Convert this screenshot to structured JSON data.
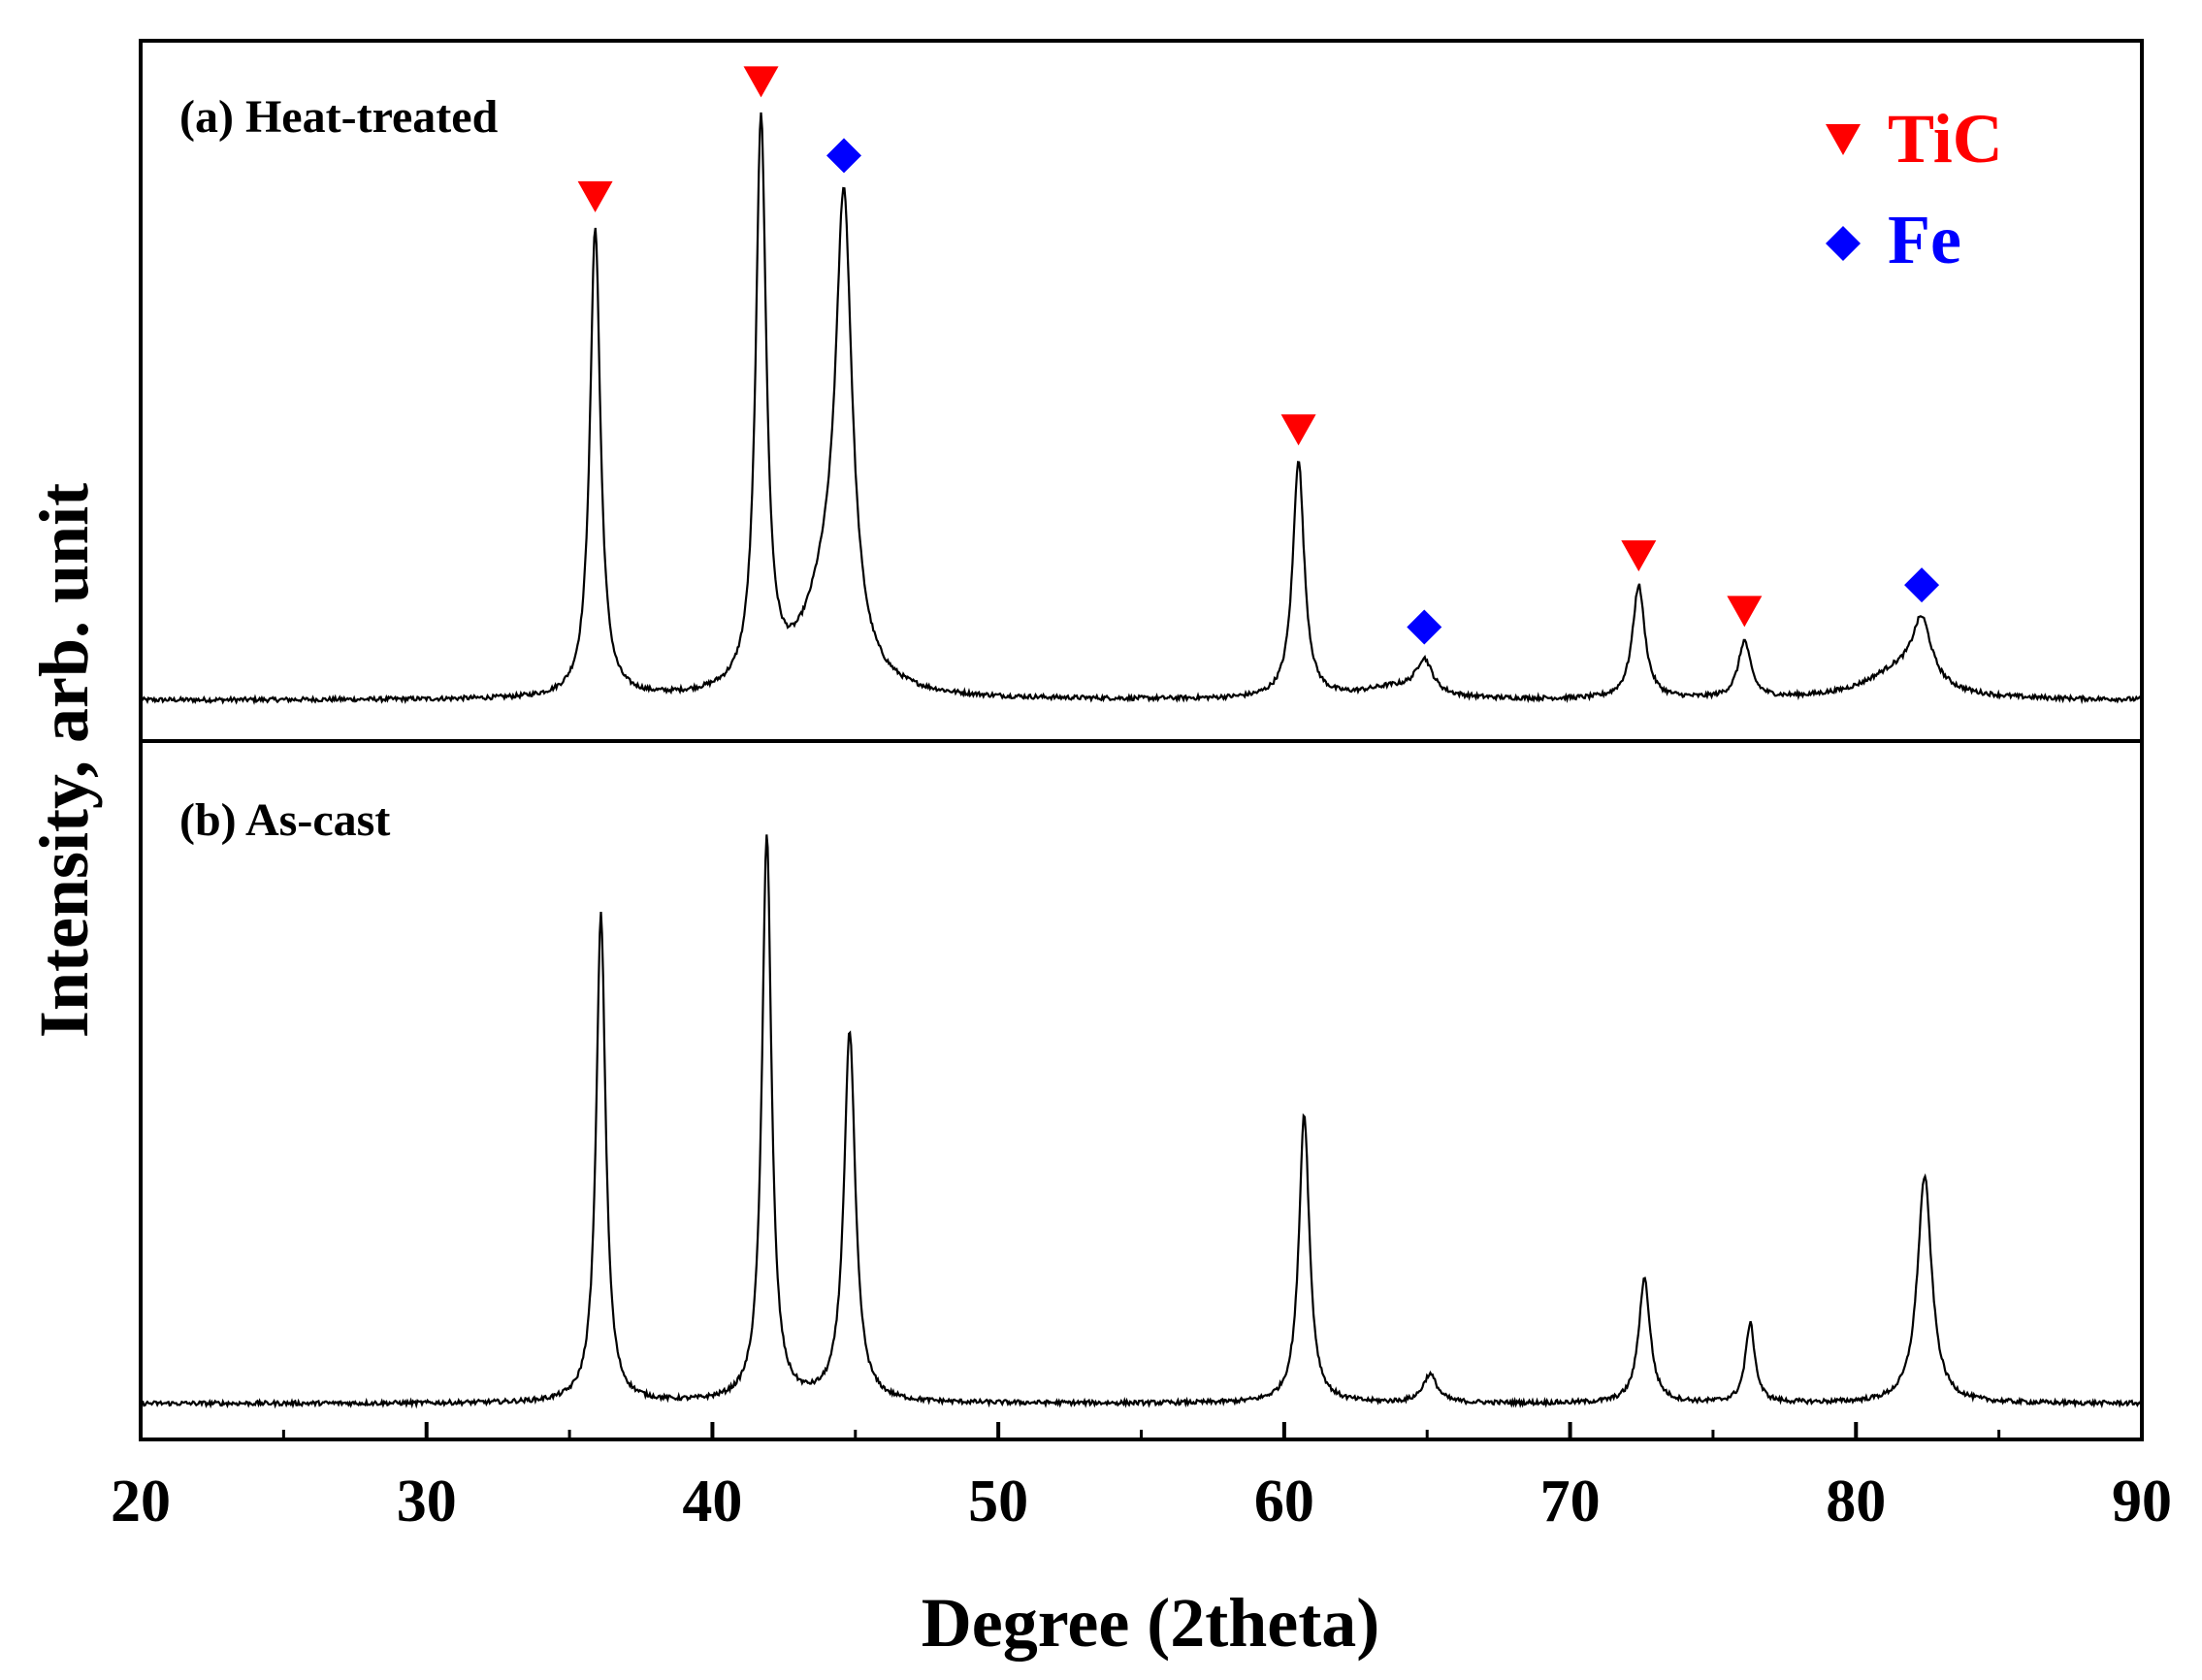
{
  "chart_data": {
    "type": "line",
    "xlabel": "Degree (2theta)",
    "ylabel": "Intensity, arb. unit",
    "xlim": [
      20,
      90
    ],
    "x_ticks": [
      20,
      30,
      40,
      50,
      60,
      70,
      80,
      90
    ],
    "x_tick_labels": [
      "20",
      "30",
      "40",
      "50",
      "60",
      "70",
      "80",
      "90"
    ],
    "y_ticks": "none",
    "grid": false,
    "legend": {
      "placement": "top-right",
      "entries": [
        {
          "name": "TiC",
          "marker": "down-triangle",
          "color": "#ff0000"
        },
        {
          "name": "Fe",
          "marker": "diamond",
          "color": "#0000ff"
        }
      ]
    },
    "panels": [
      {
        "label": "(a) Heat-treated",
        "ylim": [
          0,
          1.0
        ],
        "baseline": 0.02,
        "peaks": [
          {
            "x": 35.9,
            "height": 0.83,
            "width": 0.22
          },
          {
            "x": 41.7,
            "height": 1.0,
            "width": 0.22
          },
          {
            "x": 44.6,
            "height": 0.78,
            "width": 0.34
          },
          {
            "x": 44.0,
            "height": 0.16,
            "width": 1.0
          },
          {
            "x": 60.5,
            "height": 0.42,
            "width": 0.24
          },
          {
            "x": 64.9,
            "height": 0.06,
            "width": 0.35
          },
          {
            "x": 63.8,
            "height": 0.02,
            "width": 1.3
          },
          {
            "x": 72.4,
            "height": 0.2,
            "width": 0.26
          },
          {
            "x": 76.1,
            "height": 0.1,
            "width": 0.26
          },
          {
            "x": 82.3,
            "height": 0.11,
            "width": 0.4
          },
          {
            "x": 81.5,
            "height": 0.05,
            "width": 1.4
          }
        ],
        "markers": [
          {
            "phase": "TiC",
            "x": 35.9
          },
          {
            "phase": "TiC",
            "x": 41.7
          },
          {
            "phase": "Fe",
            "x": 44.6
          },
          {
            "phase": "TiC",
            "x": 60.5
          },
          {
            "phase": "Fe",
            "x": 64.9
          },
          {
            "phase": "TiC",
            "x": 72.4
          },
          {
            "phase": "TiC",
            "x": 76.1
          },
          {
            "phase": "Fe",
            "x": 82.3
          }
        ]
      },
      {
        "label": "(b) As-cast",
        "ylim": [
          0,
          1.0
        ],
        "baseline": 0.02,
        "peaks": [
          {
            "x": 36.1,
            "height": 0.86,
            "width": 0.2
          },
          {
            "x": 41.9,
            "height": 1.0,
            "width": 0.2
          },
          {
            "x": 44.8,
            "height": 0.65,
            "width": 0.24
          },
          {
            "x": 60.7,
            "height": 0.51,
            "width": 0.22
          },
          {
            "x": 65.1,
            "height": 0.05,
            "width": 0.3
          },
          {
            "x": 72.6,
            "height": 0.22,
            "width": 0.24
          },
          {
            "x": 76.3,
            "height": 0.14,
            "width": 0.2
          },
          {
            "x": 82.4,
            "height": 0.4,
            "width": 0.3
          }
        ]
      }
    ]
  }
}
